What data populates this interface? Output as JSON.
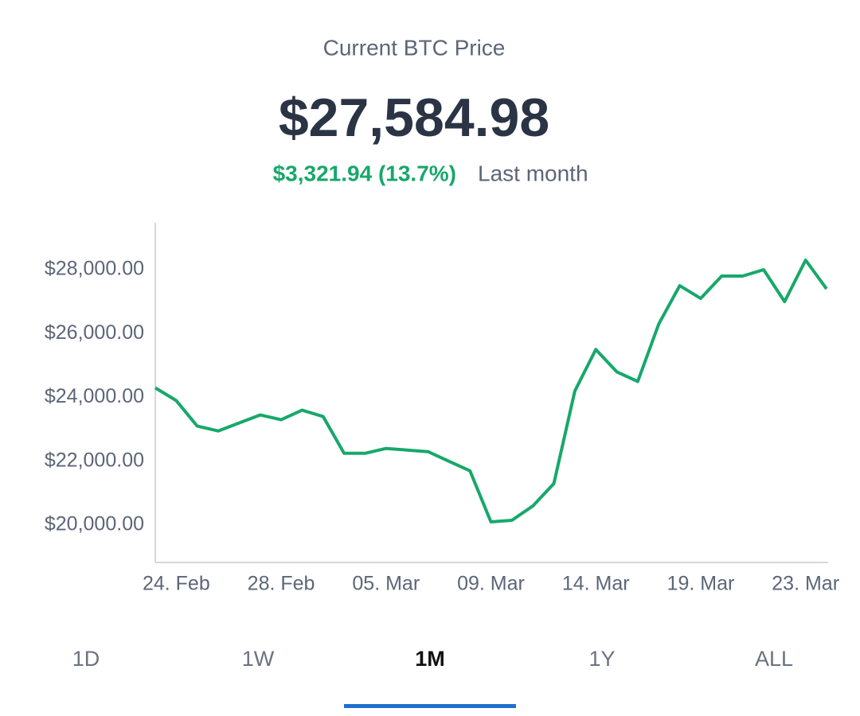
{
  "header": {
    "title": "Current BTC Price",
    "price": "$27,584.98",
    "change": "$3,321.94 (13.7%)",
    "period": "Last month"
  },
  "chart_data": {
    "type": "line",
    "categories": [
      null,
      "24. Feb",
      null,
      null,
      null,
      null,
      "28. Feb",
      null,
      null,
      null,
      null,
      "05. Mar",
      null,
      null,
      null,
      null,
      "09. Mar",
      null,
      null,
      null,
      null,
      "14. Mar",
      null,
      null,
      null,
      null,
      "19. Mar",
      null,
      null,
      null,
      null,
      "23. Mar",
      null
    ],
    "series": [
      {
        "color": "#17a86b",
        "values": [
          24300,
          23900,
          23100,
          22950,
          23200,
          23450,
          23300,
          23600,
          23400,
          22250,
          22250,
          22400,
          22350,
          22300,
          22000,
          21700,
          20100,
          20150,
          20600,
          21300,
          24200,
          25500,
          24800,
          24500,
          26300,
          27500,
          27100,
          27800,
          27800,
          28000,
          27000,
          28300,
          27400
        ]
      }
    ],
    "ylim": [
      18830,
      29470
    ],
    "yticks": [
      {
        "value": 20000,
        "label": "$20,000.00"
      },
      {
        "value": 22000,
        "label": "$22,000.00"
      },
      {
        "value": 24000,
        "label": "$24,000.00"
      },
      {
        "value": 26000,
        "label": "$26,000.00"
      },
      {
        "value": 28000,
        "label": "$28,000.00"
      }
    ]
  },
  "tabs": [
    {
      "label": "1D"
    },
    {
      "label": "1W"
    },
    {
      "label": "1M",
      "active": true
    },
    {
      "label": "1Y"
    },
    {
      "label": "ALL"
    }
  ]
}
